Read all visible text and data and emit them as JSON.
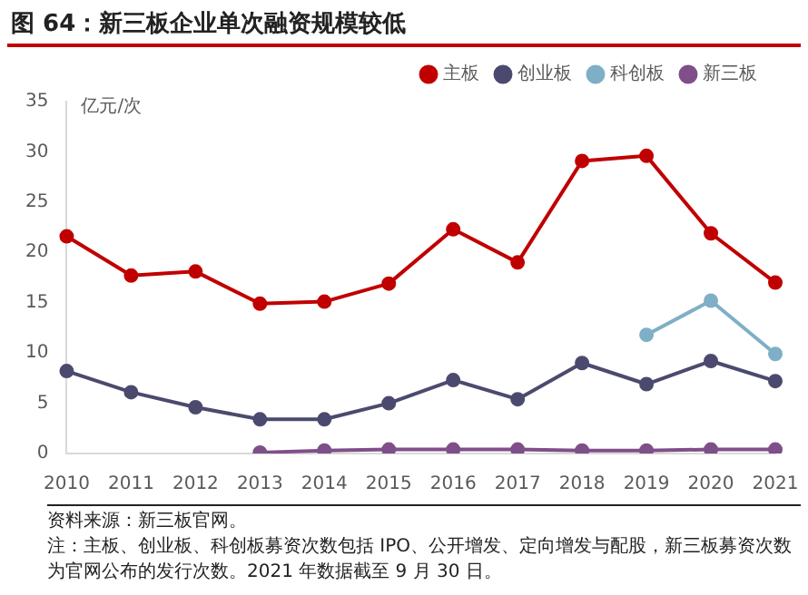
{
  "chart_data": {
    "type": "line",
    "title": "图 64：新三板企业单次融资规模较低",
    "ylabel": "亿元/次",
    "categories": [
      "2010",
      "2011",
      "2012",
      "2013",
      "2014",
      "2015",
      "2016",
      "2017",
      "2018",
      "2019",
      "2020",
      "2021"
    ],
    "series": [
      {
        "name": "主板",
        "color": "#c00000",
        "values": [
          21.6,
          17.7,
          18.1,
          14.9,
          15.1,
          16.9,
          22.3,
          19.0,
          29.1,
          29.6,
          21.9,
          17.0
        ]
      },
      {
        "name": "创业板",
        "color": "#4b4a6e",
        "values": [
          8.2,
          6.1,
          4.6,
          3.4,
          3.4,
          5.0,
          7.3,
          5.4,
          9.0,
          6.9,
          9.2,
          7.2
        ]
      },
      {
        "name": "科创板",
        "color": "#7fafc6",
        "values": [
          null,
          null,
          null,
          null,
          null,
          null,
          null,
          null,
          null,
          11.8,
          15.2,
          9.9
        ]
      },
      {
        "name": "新三板",
        "color": "#7f4f8a",
        "values": [
          null,
          null,
          null,
          0.1,
          0.3,
          0.4,
          0.4,
          0.4,
          0.3,
          0.3,
          0.4,
          0.4
        ]
      }
    ],
    "ylim": [
      0,
      35
    ],
    "yticks": [
      0,
      5,
      10,
      15,
      20,
      25,
      30,
      35
    ],
    "grid": false,
    "legend": "top",
    "marker": "circle",
    "line_style": "solid",
    "annotations": [
      "资料来源：新三板官网。",
      "注：主板、创业板、科创板募资次数包括 IPO、公开增发、定向增发与配股，新三板募资次数为官网公布的发行次数。2021 年数据截至 9 月 30 日。"
    ]
  }
}
